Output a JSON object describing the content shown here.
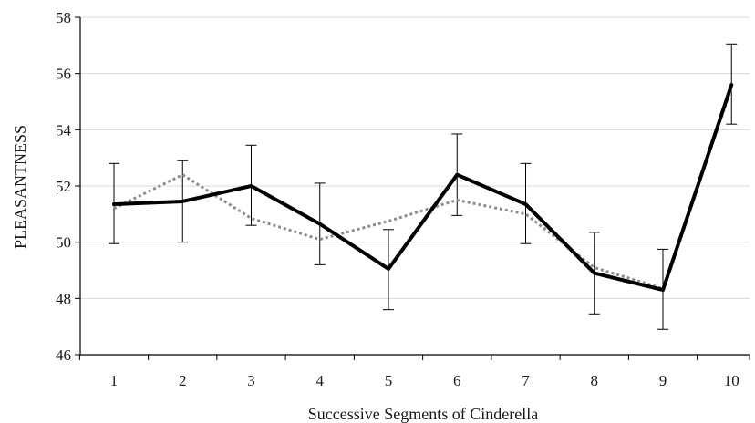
{
  "chart_data": {
    "type": "line",
    "title": "",
    "xlabel": "Successive Segments of Cinderella",
    "ylabel": "PLEASANTNESS",
    "x": [
      1,
      2,
      3,
      4,
      5,
      6,
      7,
      8,
      9,
      10
    ],
    "x_tick_labels": [
      "1",
      "2",
      "3",
      "4",
      "5",
      "6",
      "7",
      "8",
      "9",
      "10"
    ],
    "ylim": [
      46,
      58
    ],
    "y_ticks": [
      46,
      48,
      50,
      52,
      54,
      56,
      58
    ],
    "y_tick_labels": [
      "46",
      "48",
      "50",
      "52",
      "54",
      "56",
      "58"
    ],
    "grid": "horizontal",
    "legend": "none",
    "series": [
      {
        "style": "solid",
        "color": "#000000",
        "values": [
          51.35,
          51.45,
          52.0,
          50.65,
          49.05,
          52.4,
          51.35,
          48.9,
          48.3,
          55.6
        ],
        "error_low": [
          49.95,
          50.0,
          50.6,
          49.2,
          47.6,
          50.95,
          49.95,
          47.45,
          46.9,
          54.2
        ],
        "error_high": [
          52.8,
          52.9,
          53.45,
          52.1,
          50.45,
          53.85,
          52.8,
          50.35,
          49.75,
          57.05
        ]
      },
      {
        "style": "dotted",
        "color": "#8c8c8c",
        "values": [
          51.2,
          52.4,
          50.85,
          50.1,
          50.75,
          51.5,
          51.0,
          49.1,
          48.35,
          55.5
        ]
      }
    ]
  }
}
